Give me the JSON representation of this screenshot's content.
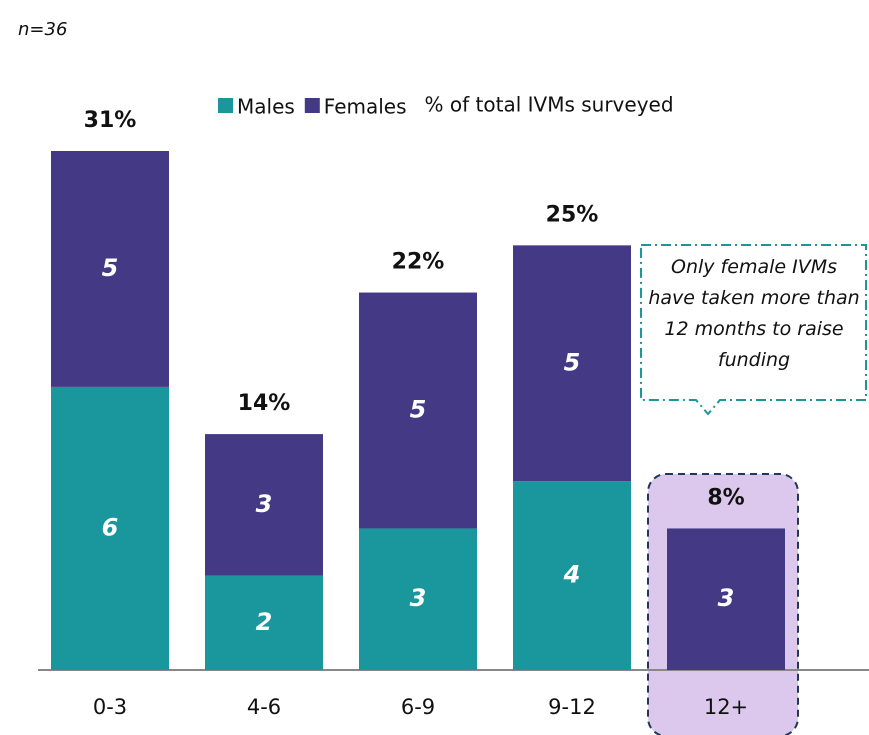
{
  "chart_data": {
    "type": "stacked_bar",
    "subtitle": "n=36",
    "categories": [
      "0-3",
      "4-6",
      "6-9",
      "9-12",
      "12+"
    ],
    "series": [
      {
        "name": "Males",
        "color": "#1a979d",
        "values": [
          6,
          2,
          3,
          4,
          null
        ]
      },
      {
        "name": "Females",
        "color": "#433985",
        "values": [
          5,
          3,
          5,
          5,
          3
        ]
      }
    ],
    "totals": {
      "name": "% of total IVMs surveyed",
      "values": [
        31,
        14,
        22,
        25,
        8
      ],
      "value_labels": [
        "31%",
        "14%",
        "22%",
        "25%",
        "8%"
      ]
    },
    "annotation": "Only female IVMs have taken more than 12 months to raise funding",
    "ylim": [
      0,
      11
    ]
  }
}
